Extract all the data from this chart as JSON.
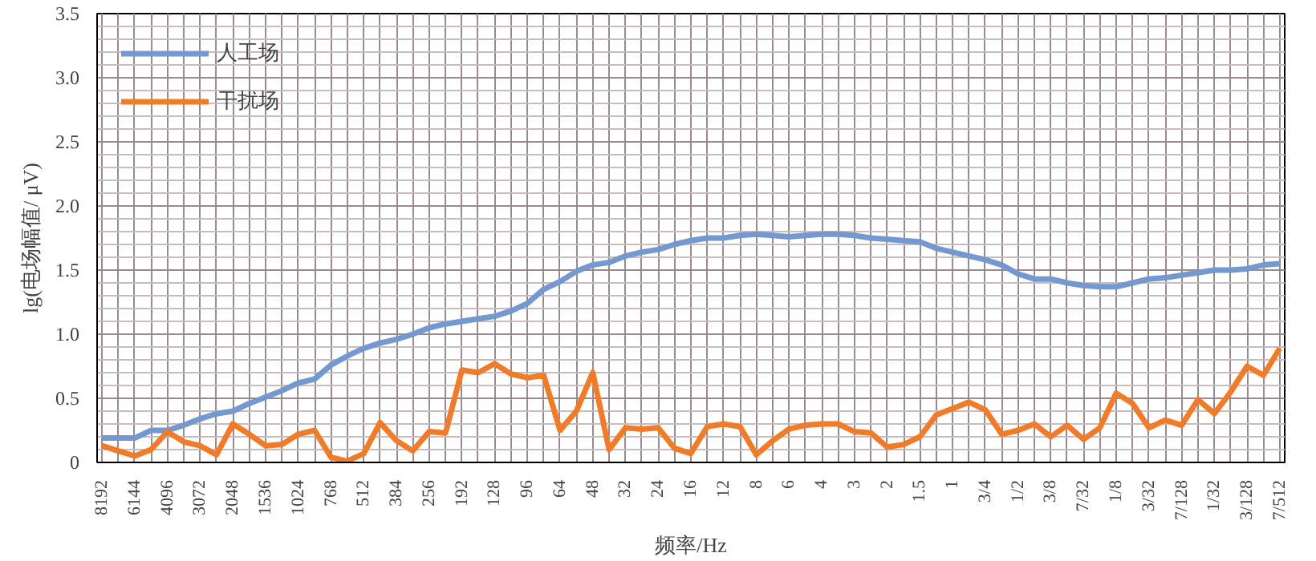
{
  "chart_data": {
    "type": "line",
    "xlabel": "频率/Hz",
    "ylabel": "lg(电场幅值/ μV)",
    "categories": [
      "8192",
      null,
      "6144",
      null,
      "4096",
      null,
      "3072",
      null,
      "2048",
      null,
      "1536",
      null,
      "1024",
      null,
      "768",
      null,
      "512",
      null,
      "384",
      null,
      "256",
      null,
      "192",
      null,
      "128",
      null,
      "96",
      null,
      "64",
      null,
      "48",
      null,
      "32",
      null,
      "24",
      null,
      "16",
      null,
      "12",
      null,
      "8",
      null,
      "6",
      null,
      "4",
      null,
      "3",
      null,
      "2",
      null,
      "1.5",
      null,
      "1",
      null,
      "3/4",
      null,
      "1/2",
      null,
      "3/8",
      null,
      "7/32",
      null,
      "1/8",
      null,
      "3/32",
      null,
      "7/128",
      null,
      "1/32",
      null,
      "3/128",
      null,
      "7/512"
    ],
    "series": [
      {
        "name": "人工场",
        "color": "#7399d0",
        "values": [
          0.19,
          0.19,
          0.19,
          0.25,
          0.25,
          0.29,
          0.34,
          0.38,
          0.4,
          0.46,
          0.51,
          0.56,
          0.62,
          0.65,
          0.76,
          0.83,
          0.89,
          0.93,
          0.96,
          1.0,
          1.05,
          1.08,
          1.1,
          1.12,
          1.14,
          1.18,
          1.24,
          1.35,
          1.41,
          1.49,
          1.54,
          1.56,
          1.61,
          1.64,
          1.66,
          1.7,
          1.73,
          1.75,
          1.75,
          1.77,
          1.78,
          1.77,
          1.76,
          1.77,
          1.78,
          1.78,
          1.77,
          1.75,
          1.74,
          1.73,
          1.72,
          1.67,
          1.64,
          1.61,
          1.58,
          1.54,
          1.47,
          1.43,
          1.43,
          1.4,
          1.38,
          1.37,
          1.37,
          1.4,
          1.43,
          1.44,
          1.46,
          1.48,
          1.5,
          1.5,
          1.51,
          1.54,
          1.55
        ]
      },
      {
        "name": "干扰场",
        "color": "#f07c2a",
        "values": [
          0.13,
          0.09,
          0.05,
          0.1,
          0.24,
          0.16,
          0.13,
          0.06,
          0.3,
          0.22,
          0.13,
          0.14,
          0.22,
          0.25,
          0.04,
          0.01,
          0.07,
          0.31,
          0.17,
          0.09,
          0.24,
          0.23,
          0.72,
          0.7,
          0.77,
          0.69,
          0.66,
          0.68,
          0.25,
          0.4,
          0.7,
          0.1,
          0.27,
          0.26,
          0.27,
          0.11,
          0.07,
          0.28,
          0.3,
          0.28,
          0.06,
          0.17,
          0.26,
          0.29,
          0.3,
          0.3,
          0.24,
          0.23,
          0.12,
          0.14,
          0.2,
          0.37,
          0.42,
          0.47,
          0.41,
          0.22,
          0.25,
          0.3,
          0.2,
          0.29,
          0.18,
          0.27,
          0.54,
          0.46,
          0.27,
          0.33,
          0.29,
          0.49,
          0.38,
          0.55,
          0.75,
          0.68,
          0.89
        ]
      }
    ],
    "ylim": [
      0,
      3.5
    ],
    "yticks": [
      0,
      {
        "value": 0.5,
        "label": "0.5"
      },
      {
        "value": 1,
        "label": "1.0"
      },
      {
        "value": 1.5,
        "label": "1.5"
      },
      {
        "value": 2,
        "label": "2.0"
      },
      {
        "value": 2.5,
        "label": "2.5"
      },
      {
        "value": 3,
        "label": "3.0"
      },
      {
        "value": 3.5,
        "label": "3.5"
      }
    ],
    "grid": true,
    "legend": "top left",
    "marker": "none",
    "line_style": "solid"
  }
}
